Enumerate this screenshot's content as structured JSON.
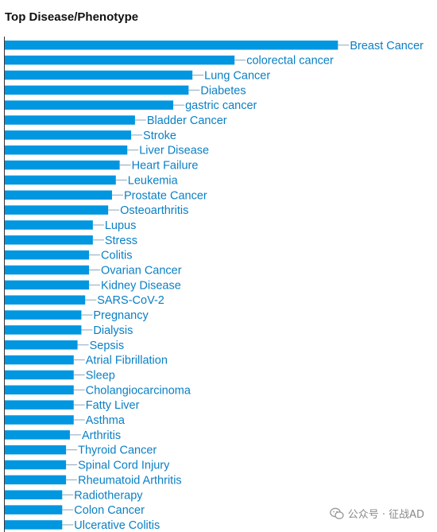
{
  "title": "Top Disease/Phenotype",
  "watermark": "公众号 · 征战AD",
  "chart_data": {
    "type": "bar",
    "orientation": "horizontal",
    "color": "#0096e0",
    "label_color": "#0a7fc4",
    "categories": [
      "Breast Cancer",
      "colorectal cancer",
      "Lung Cancer",
      "Diabetes",
      "gastric cancer",
      "Bladder Cancer",
      "Stroke",
      "Liver Disease",
      "Heart Failure",
      "Leukemia",
      "Prostate Cancer",
      "Osteoarthritis",
      "Lupus",
      "Stress",
      "Colitis",
      "Ovarian Cancer",
      "Kidney Disease",
      "SARS-CoV-2",
      "Pregnancy",
      "Dialysis",
      "Sepsis",
      "Atrial Fibrillation",
      "Sleep",
      "Cholangiocarcinoma",
      "Fatty Liver",
      "Asthma",
      "Arthritis",
      "Thyroid Cancer",
      "Spinal Cord Injury",
      "Rheumatoid Arthritis",
      "Radiotherapy",
      "Colon Cancer",
      "Ulcerative Colitis"
    ],
    "values": [
      87,
      60,
      49,
      48,
      44,
      34,
      33,
      32,
      30,
      29,
      28,
      27,
      23,
      23,
      22,
      22,
      22,
      21,
      20,
      20,
      19,
      18,
      18,
      18,
      18,
      18,
      17,
      16,
      16,
      16,
      15,
      15,
      15
    ]
  }
}
